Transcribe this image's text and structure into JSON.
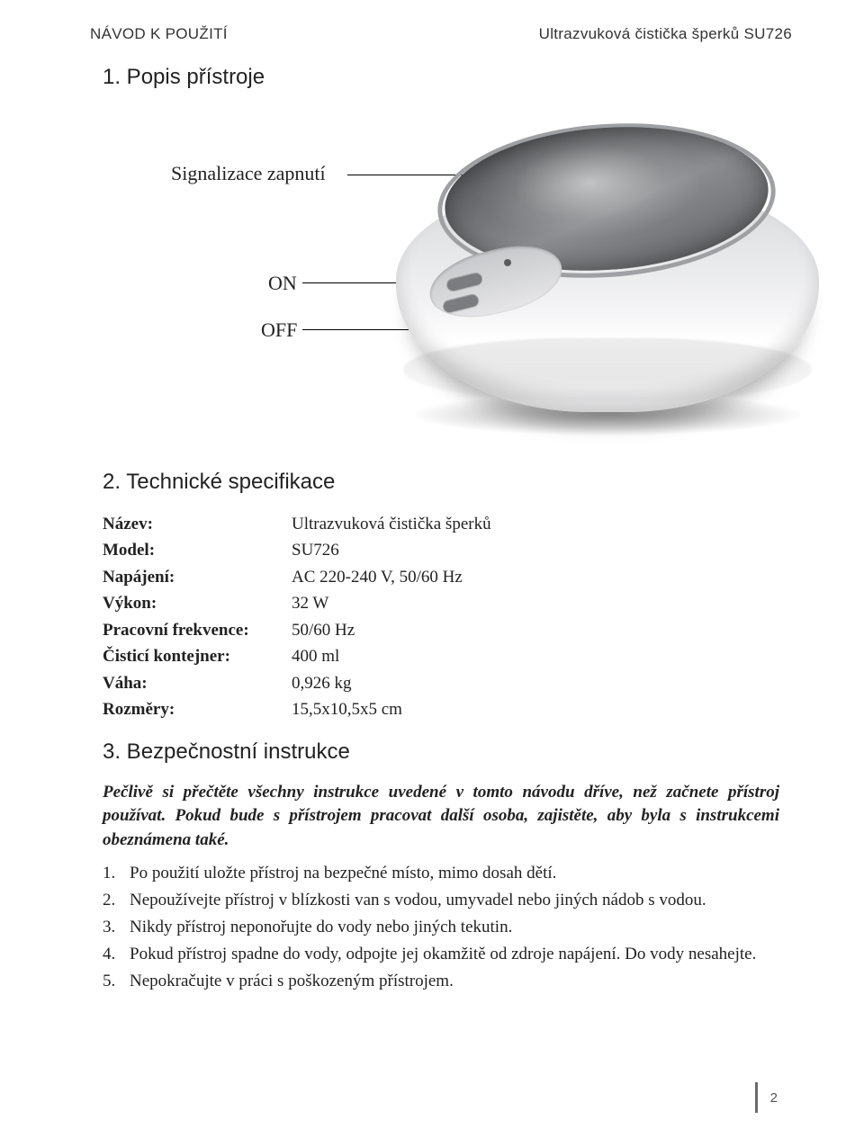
{
  "header": {
    "left": "NÁVOD K POUŽITÍ",
    "right": "Ultrazvuková čistička šperků SU726"
  },
  "section1": {
    "title": "1. Popis přístroje",
    "labels": {
      "signal": "Signalizace zapnutí",
      "on": "ON",
      "off": "OFF"
    }
  },
  "section2": {
    "title": "2. Technické specifikace",
    "specs": [
      {
        "label": "Název:",
        "value": "Ultrazvuková čistička šperků"
      },
      {
        "label": "Model:",
        "value": "SU726"
      },
      {
        "label": "Napájení:",
        "value": "AC 220-240 V, 50/60 Hz"
      },
      {
        "label": "Výkon:",
        "value": "32 W"
      },
      {
        "label": "Pracovní frekvence:",
        "value": "50/60 Hz"
      },
      {
        "label": "Čisticí kontejner:",
        "value": "400 ml"
      },
      {
        "label": "Váha:",
        "value": "0,926 kg"
      },
      {
        "label": "Rozměry:",
        "value": "15,5x10,5x5 cm"
      }
    ]
  },
  "section3": {
    "title": "3. Bezpečnostní instrukce",
    "intro": "Pečlivě si přečtěte všechny instrukce uvedené v tomto návodu dříve, než začnete přístroj používat. Pokud bude s přístrojem pracovat další osoba, zajistěte, aby byla s instrukcemi obeznámena také.",
    "items": [
      "Po použití uložte přístroj na bezpečné místo, mimo dosah dětí.",
      "Nepoužívejte přístroj v blízkosti van s vodou, umyvadel nebo jiných nádob s vodou.",
      "Nikdy přístroj neponořujte do vody nebo jiných tekutin.",
      "Pokud přístroj spadne do vody, odpojte jej okamžitě od zdroje napájení. Do vody nesahejte.",
      "Nepokračujte v práci s poškozeným přístrojem."
    ]
  },
  "footer": {
    "page": "2"
  },
  "style": {
    "page_bg": "#ffffff",
    "text_color": "#222222",
    "header_fontsize": 17,
    "section_title_fontsize": 24,
    "label_fontsize": 22,
    "body_fontsize": 19,
    "serif_font": "Georgia, Times New Roman, serif",
    "sans_font": "Arial, Helvetica, sans-serif"
  }
}
